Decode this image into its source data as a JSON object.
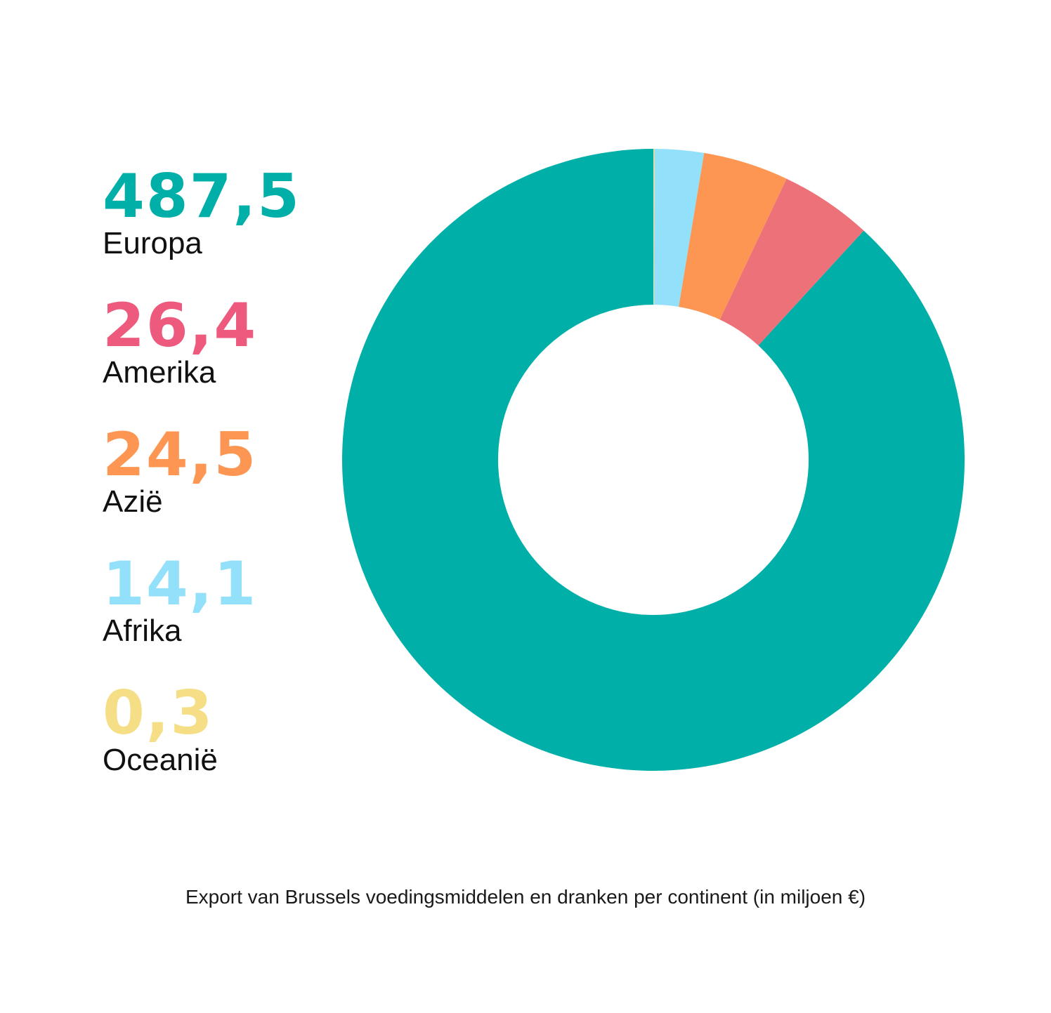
{
  "chart_data": {
    "type": "pie",
    "categories": [
      "Europa",
      "Amerika",
      "Azië",
      "Afrika",
      "Oceanië"
    ],
    "values": [
      487.5,
      26.4,
      24.5,
      14.1,
      0.3
    ],
    "value_labels": [
      "487,5",
      "26,4",
      "24,5",
      "14,1",
      "0,3"
    ],
    "colors": [
      "#00B0A8",
      "#EC7179",
      "#FC9652",
      "#92E0FA",
      "#F5DE85"
    ],
    "label_colors": [
      "#00B0A8",
      "#EE5A7E",
      "#FC9652",
      "#92E0FA",
      "#F5DE85"
    ],
    "legend_placement": "left",
    "donut": true,
    "title": "Export van Brussels voedingsmiddelen en dranken per continent (in miljoen €)"
  }
}
